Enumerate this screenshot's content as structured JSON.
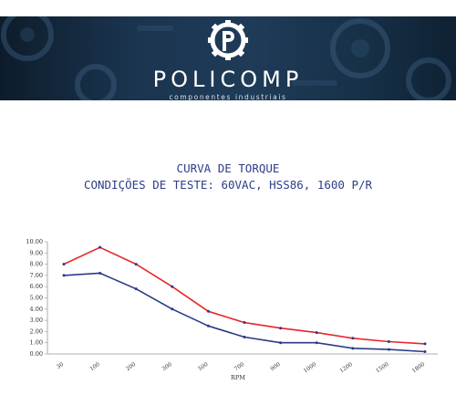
{
  "header": {
    "brand_name": "POLICOMP",
    "brand_tagline": "componentes industriais",
    "colors": {
      "banner_dark": "#0d1c2b",
      "banner_mid": "#1f3b58",
      "text": "#ffffff"
    },
    "logo_icon": "gear-p-logo-icon"
  },
  "chart_title_lines": [
    "CURVA DE TORQUE",
    "CONDIÇÕES DE TESTE: 60VAC, HSS86, 1600 P/R"
  ],
  "chart_data": {
    "type": "line",
    "title": "CURVA DE TORQUE",
    "subtitle": "CONDIÇÕES DE TESTE: 60VAC, HSS86, 1600 P/R",
    "xlabel": "RPM",
    "ylabel": "",
    "categories": [
      "30",
      "100",
      "200",
      "300",
      "500",
      "700",
      "900",
      "1000",
      "1200",
      "1500",
      "1800"
    ],
    "y_ticks": [
      "0.00",
      "1.00",
      "2.00",
      "3.00",
      "4.00",
      "5.00",
      "6.00",
      "7.00",
      "8.00",
      "9.00",
      "10.00"
    ],
    "ylim": [
      0,
      10
    ],
    "grid": false,
    "series": [
      {
        "color": "#e8262a",
        "values": [
          8.0,
          9.5,
          8.0,
          6.0,
          3.8,
          2.8,
          2.3,
          1.9,
          1.4,
          1.1,
          0.9
        ]
      },
      {
        "color": "#2a3b86",
        "values": [
          7.0,
          7.2,
          5.8,
          4.0,
          2.5,
          1.5,
          1.0,
          1.0,
          0.5,
          0.4,
          0.2
        ]
      }
    ]
  }
}
